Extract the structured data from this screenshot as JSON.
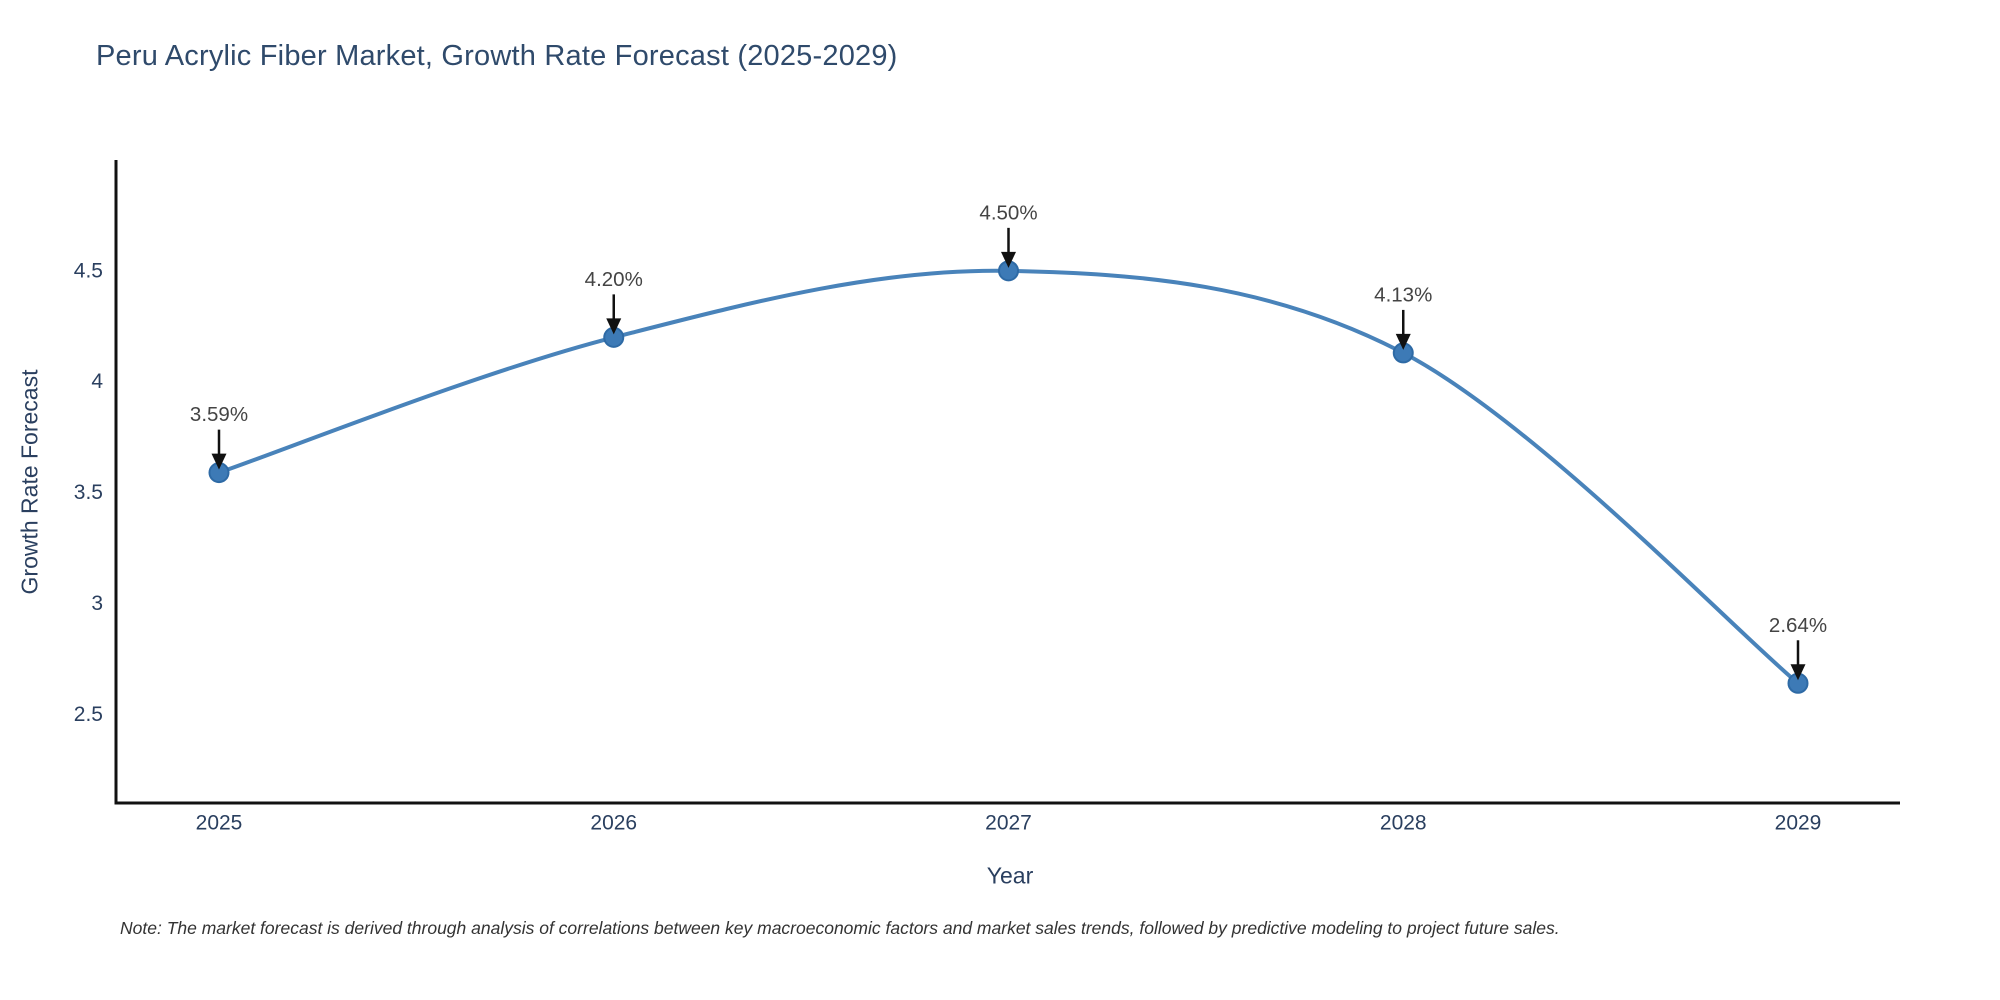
{
  "page": {
    "title": "Peru Acrylic Fiber Market, Growth Rate Forecast (2025-2029)",
    "note": "Note: The market forecast is derived through analysis of correlations between key macroeconomic factors and market sales trends, followed by predictive modeling to project future sales."
  },
  "chart_data": {
    "type": "line",
    "title": "Peru Acrylic Fiber Market, Growth Rate Forecast (2025-2029)",
    "xlabel": "Year",
    "ylabel": "Growth Rate Forecast",
    "categories": [
      "2025",
      "2026",
      "2027",
      "2028",
      "2029"
    ],
    "values": [
      3.59,
      4.2,
      4.5,
      4.13,
      2.64
    ],
    "point_labels": [
      "3.59%",
      "4.20%",
      "4.50%",
      "4.13%",
      "2.64%"
    ],
    "ytick_labels": [
      "2.5",
      "3",
      "3.5",
      "4",
      "4.5"
    ],
    "ytick_values": [
      2.5,
      3.0,
      3.5,
      4.0,
      4.5
    ],
    "ylim": [
      2.1,
      5.0
    ],
    "grid": false,
    "legend": "none",
    "line_shape": "spline",
    "annotations": "value labels with downward arrows above each point",
    "colors": {
      "line": "#4983ba",
      "marker": "#3d7ab6",
      "marker_edge": "#2e6aa5",
      "axis_line": "#111111",
      "tick_label": "#2a3f5f",
      "annotation_text": "#444444",
      "arrow": "#111111",
      "title": "#2f4a6b",
      "note": "#333333",
      "background": "#ffffff"
    }
  }
}
